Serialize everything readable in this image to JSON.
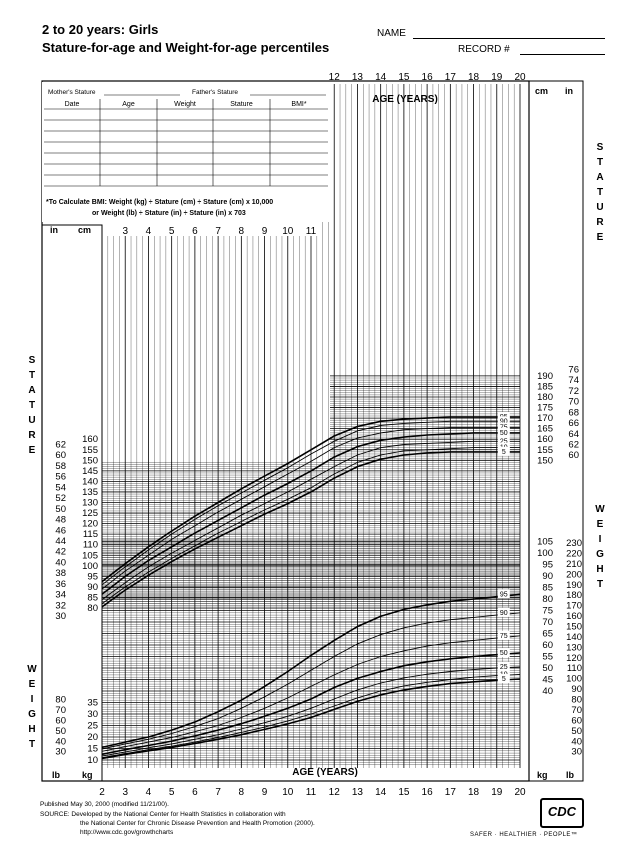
{
  "header": {
    "title_line1": "2 to 20 years: Girls",
    "title_line2": "Stature-for-age and Weight-for-age percentiles",
    "name_label": "NAME",
    "record_label": "RECORD #"
  },
  "record_table": {
    "mothers_stature": "Mother's Stature",
    "fathers_stature": "Father's Stature",
    "columns": [
      "Date",
      "Age",
      "Weight",
      "Stature",
      "BMI*"
    ],
    "bmi_note_line1": "*To Calculate BMI: Weight (kg) ÷ Stature (cm) ÷ Stature (cm) x 10,000",
    "bmi_note_line2": "or Weight (lb) ÷ Stature (in) ÷ Stature (in) x 703"
  },
  "axis_text": {
    "age_label": "AGE (YEARS)",
    "stature": "STATURE",
    "weight": "WEIGHT",
    "cm": "cm",
    "in": "in",
    "kg": "kg",
    "lb": "lb"
  },
  "chart_data": {
    "type": "line",
    "xlabel": "AGE (YEARS)",
    "x_ticks": [
      2,
      3,
      4,
      5,
      6,
      7,
      8,
      9,
      10,
      11,
      12,
      13,
      14,
      15,
      16,
      17,
      18,
      19,
      20
    ],
    "stature_cm_ticks_left": [
      80,
      85,
      90,
      95,
      100,
      105,
      110,
      115,
      120,
      125,
      130,
      135,
      140,
      145,
      150,
      155,
      160
    ],
    "stature_in_ticks_left": [
      30,
      32,
      34,
      36,
      38,
      40,
      42,
      44,
      46,
      48,
      50,
      52,
      54,
      56,
      58,
      60,
      62
    ],
    "stature_cm_ticks_right": [
      150,
      155,
      160,
      165,
      170,
      175,
      180,
      185,
      190
    ],
    "stature_in_ticks_right": [
      60,
      62,
      64,
      66,
      68,
      70,
      72,
      74,
      76
    ],
    "weight_kg_ticks_left": [
      10,
      15,
      20,
      25,
      30,
      35
    ],
    "weight_lb_ticks_left": [
      30,
      40,
      50,
      60,
      70,
      80
    ],
    "weight_kg_ticks_right": [
      40,
      45,
      50,
      55,
      60,
      65,
      70,
      75,
      80,
      85,
      90,
      95,
      100,
      105
    ],
    "weight_lb_ticks_right": [
      30,
      40,
      50,
      60,
      70,
      80,
      90,
      100,
      110,
      120,
      130,
      140,
      150,
      160,
      170,
      180,
      190,
      200,
      210,
      220,
      230
    ],
    "stature_series": [
      {
        "name": "95",
        "values": [
          [
            2,
            92.5
          ],
          [
            3,
            101
          ],
          [
            4,
            109
          ],
          [
            5,
            116.5
          ],
          [
            6,
            123.5
          ],
          [
            7,
            130
          ],
          [
            8,
            136.5
          ],
          [
            9,
            142.5
          ],
          [
            10,
            148.5
          ],
          [
            11,
            155
          ],
          [
            12,
            161.5
          ],
          [
            13,
            166
          ],
          [
            14,
            168.5
          ],
          [
            15,
            169.5
          ],
          [
            16,
            170
          ],
          [
            17,
            170.5
          ],
          [
            18,
            170.5
          ],
          [
            19,
            170.5
          ],
          [
            20,
            170.5
          ]
        ]
      },
      {
        "name": "90",
        "values": [
          [
            2,
            91
          ],
          [
            3,
            99.5
          ],
          [
            4,
            107.5
          ],
          [
            5,
            115
          ],
          [
            6,
            122
          ],
          [
            7,
            128.5
          ],
          [
            8,
            134.5
          ],
          [
            9,
            140.5
          ],
          [
            10,
            146.5
          ],
          [
            11,
            153
          ],
          [
            12,
            159
          ],
          [
            13,
            164
          ],
          [
            14,
            166.5
          ],
          [
            15,
            167.5
          ],
          [
            16,
            168
          ],
          [
            17,
            168.5
          ],
          [
            18,
            168.5
          ],
          [
            19,
            168.5
          ],
          [
            20,
            168.5
          ]
        ]
      },
      {
        "name": "75",
        "values": [
          [
            2,
            89
          ],
          [
            3,
            97.5
          ],
          [
            4,
            105
          ],
          [
            5,
            112.5
          ],
          [
            6,
            119
          ],
          [
            7,
            125.5
          ],
          [
            8,
            131.5
          ],
          [
            9,
            137.5
          ],
          [
            10,
            143.5
          ],
          [
            11,
            149.5
          ],
          [
            12,
            156
          ],
          [
            13,
            160.5
          ],
          [
            14,
            163
          ],
          [
            15,
            164.5
          ],
          [
            16,
            165
          ],
          [
            17,
            165.5
          ],
          [
            18,
            165.5
          ],
          [
            19,
            165.5
          ],
          [
            20,
            165.5
          ]
        ]
      },
      {
        "name": "50",
        "values": [
          [
            2,
            86.5
          ],
          [
            3,
            95
          ],
          [
            4,
            102.5
          ],
          [
            5,
            109
          ],
          [
            6,
            115.5
          ],
          [
            7,
            121.5
          ],
          [
            8,
            127.5
          ],
          [
            9,
            133.5
          ],
          [
            10,
            139
          ],
          [
            11,
            145
          ],
          [
            12,
            151.5
          ],
          [
            13,
            156.5
          ],
          [
            14,
            159.5
          ],
          [
            15,
            161
          ],
          [
            16,
            162
          ],
          [
            17,
            162.5
          ],
          [
            18,
            163
          ],
          [
            19,
            163
          ],
          [
            20,
            163
          ]
        ]
      },
      {
        "name": "25",
        "values": [
          [
            2,
            84
          ],
          [
            3,
            92
          ],
          [
            4,
            99.5
          ],
          [
            5,
            106
          ],
          [
            6,
            112
          ],
          [
            7,
            118
          ],
          [
            8,
            124
          ],
          [
            9,
            129.5
          ],
          [
            10,
            135
          ],
          [
            11,
            141
          ],
          [
            12,
            147
          ],
          [
            13,
            152.5
          ],
          [
            14,
            156
          ],
          [
            15,
            157.5
          ],
          [
            16,
            158
          ],
          [
            17,
            158.5
          ],
          [
            18,
            159
          ],
          [
            19,
            159
          ],
          [
            20,
            159
          ]
        ]
      },
      {
        "name": "10",
        "values": [
          [
            2,
            82
          ],
          [
            3,
            90
          ],
          [
            4,
            97
          ],
          [
            5,
            103.5
          ],
          [
            6,
            109.5
          ],
          [
            7,
            115.5
          ],
          [
            8,
            121
          ],
          [
            9,
            126.5
          ],
          [
            10,
            131.5
          ],
          [
            11,
            137
          ],
          [
            12,
            143.5
          ],
          [
            13,
            149
          ],
          [
            14,
            152.5
          ],
          [
            15,
            154.5
          ],
          [
            16,
            155
          ],
          [
            17,
            155.5
          ],
          [
            18,
            156
          ],
          [
            19,
            156
          ],
          [
            20,
            156
          ]
        ]
      },
      {
        "name": "5",
        "values": [
          [
            2,
            80.5
          ],
          [
            3,
            88.5
          ],
          [
            4,
            95.5
          ],
          [
            5,
            102
          ],
          [
            6,
            108
          ],
          [
            7,
            113.5
          ],
          [
            8,
            119
          ],
          [
            9,
            124.5
          ],
          [
            10,
            129.5
          ],
          [
            11,
            135
          ],
          [
            12,
            141.5
          ],
          [
            13,
            147
          ],
          [
            14,
            150.5
          ],
          [
            15,
            152.5
          ],
          [
            16,
            153.5
          ],
          [
            17,
            154
          ],
          [
            18,
            154
          ],
          [
            19,
            154
          ],
          [
            20,
            154
          ]
        ]
      }
    ],
    "weight_series": [
      {
        "name": "95",
        "values": [
          [
            2,
            15.5
          ],
          [
            3,
            17.8
          ],
          [
            4,
            20
          ],
          [
            5,
            23
          ],
          [
            6,
            26.5
          ],
          [
            7,
            31
          ],
          [
            8,
            36
          ],
          [
            9,
            42
          ],
          [
            10,
            48.5
          ],
          [
            11,
            55.5
          ],
          [
            12,
            62
          ],
          [
            13,
            68
          ],
          [
            14,
            72.5
          ],
          [
            15,
            75.5
          ],
          [
            16,
            77.5
          ],
          [
            17,
            79
          ],
          [
            18,
            80
          ],
          [
            19,
            81
          ],
          [
            20,
            82
          ]
        ]
      },
      {
        "name": "90",
        "values": [
          [
            2,
            14.8
          ],
          [
            3,
            17
          ],
          [
            4,
            19
          ],
          [
            5,
            21.5
          ],
          [
            6,
            24.5
          ],
          [
            7,
            28
          ],
          [
            8,
            32.5
          ],
          [
            9,
            37.5
          ],
          [
            10,
            43
          ],
          [
            11,
            49
          ],
          [
            12,
            55
          ],
          [
            13,
            60.5
          ],
          [
            14,
            64.5
          ],
          [
            15,
            67.5
          ],
          [
            16,
            69.5
          ],
          [
            17,
            71
          ],
          [
            18,
            72
          ],
          [
            19,
            73
          ],
          [
            20,
            74
          ]
        ]
      },
      {
        "name": "75",
        "values": [
          [
            2,
            13.8
          ],
          [
            3,
            15.8
          ],
          [
            4,
            17.8
          ],
          [
            5,
            19.8
          ],
          [
            6,
            22.3
          ],
          [
            7,
            25
          ],
          [
            8,
            28.5
          ],
          [
            9,
            32.5
          ],
          [
            10,
            37
          ],
          [
            11,
            42
          ],
          [
            12,
            47
          ],
          [
            13,
            51.5
          ],
          [
            14,
            55
          ],
          [
            15,
            57.5
          ],
          [
            16,
            59.5
          ],
          [
            17,
            61
          ],
          [
            18,
            62
          ],
          [
            19,
            63
          ],
          [
            20,
            64
          ]
        ]
      },
      {
        "name": "50",
        "values": [
          [
            2,
            12.5
          ],
          [
            3,
            14.5
          ],
          [
            4,
            16.3
          ],
          [
            5,
            18.2
          ],
          [
            6,
            20.5
          ],
          [
            7,
            23
          ],
          [
            8,
            25.8
          ],
          [
            9,
            29
          ],
          [
            10,
            32.5
          ],
          [
            11,
            36.5
          ],
          [
            12,
            41.5
          ],
          [
            13,
            45.5
          ],
          [
            14,
            48.5
          ],
          [
            15,
            51
          ],
          [
            16,
            52.7
          ],
          [
            17,
            54
          ],
          [
            18,
            55
          ],
          [
            19,
            55.8
          ],
          [
            20,
            56.5
          ]
        ]
      },
      {
        "name": "25",
        "values": [
          [
            2,
            11.7
          ],
          [
            3,
            13.5
          ],
          [
            4,
            15.3
          ],
          [
            5,
            17
          ],
          [
            6,
            19
          ],
          [
            7,
            21
          ],
          [
            8,
            23.5
          ],
          [
            9,
            26.2
          ],
          [
            10,
            29
          ],
          [
            11,
            32.5
          ],
          [
            12,
            36.5
          ],
          [
            13,
            40.5
          ],
          [
            14,
            43.5
          ],
          [
            15,
            45.7
          ],
          [
            16,
            47.3
          ],
          [
            17,
            48.5
          ],
          [
            18,
            49.3
          ],
          [
            19,
            50
          ],
          [
            20,
            50.5
          ]
        ]
      },
      {
        "name": "10",
        "values": [
          [
            2,
            11
          ],
          [
            3,
            12.8
          ],
          [
            4,
            14.5
          ],
          [
            5,
            16
          ],
          [
            6,
            17.8
          ],
          [
            7,
            19.8
          ],
          [
            8,
            22
          ],
          [
            9,
            24.3
          ],
          [
            10,
            27
          ],
          [
            11,
            30
          ],
          [
            12,
            33.5
          ],
          [
            13,
            37
          ],
          [
            14,
            40
          ],
          [
            15,
            42.2
          ],
          [
            16,
            43.8
          ],
          [
            17,
            45
          ],
          [
            18,
            46
          ],
          [
            19,
            46.7
          ],
          [
            20,
            47.2
          ]
        ]
      },
      {
        "name": "5",
        "values": [
          [
            2,
            10.7
          ],
          [
            3,
            12.4
          ],
          [
            4,
            14
          ],
          [
            5,
            15.5
          ],
          [
            6,
            17.2
          ],
          [
            7,
            19
          ],
          [
            8,
            21
          ],
          [
            9,
            23.3
          ],
          [
            10,
            25.7
          ],
          [
            11,
            28.5
          ],
          [
            12,
            32
          ],
          [
            13,
            35.5
          ],
          [
            14,
            38.3
          ],
          [
            15,
            40.5
          ],
          [
            16,
            42
          ],
          [
            17,
            43.2
          ],
          [
            18,
            44
          ],
          [
            19,
            44.7
          ],
          [
            20,
            45.2
          ]
        ]
      }
    ]
  },
  "footer": {
    "published": "Published May 30, 2000 (modified 11/21/00).",
    "source_line1": "SOURCE: Developed by the National Center for Health Statistics in collaboration with",
    "source_line2": "the National Center for Chronic Disease Prevention and Health Promotion (2000).",
    "url": "http://www.cdc.gov/growthcharts",
    "logo_text": "CDC",
    "tagline": "SAFER · HEALTHIER · PEOPLE™"
  }
}
